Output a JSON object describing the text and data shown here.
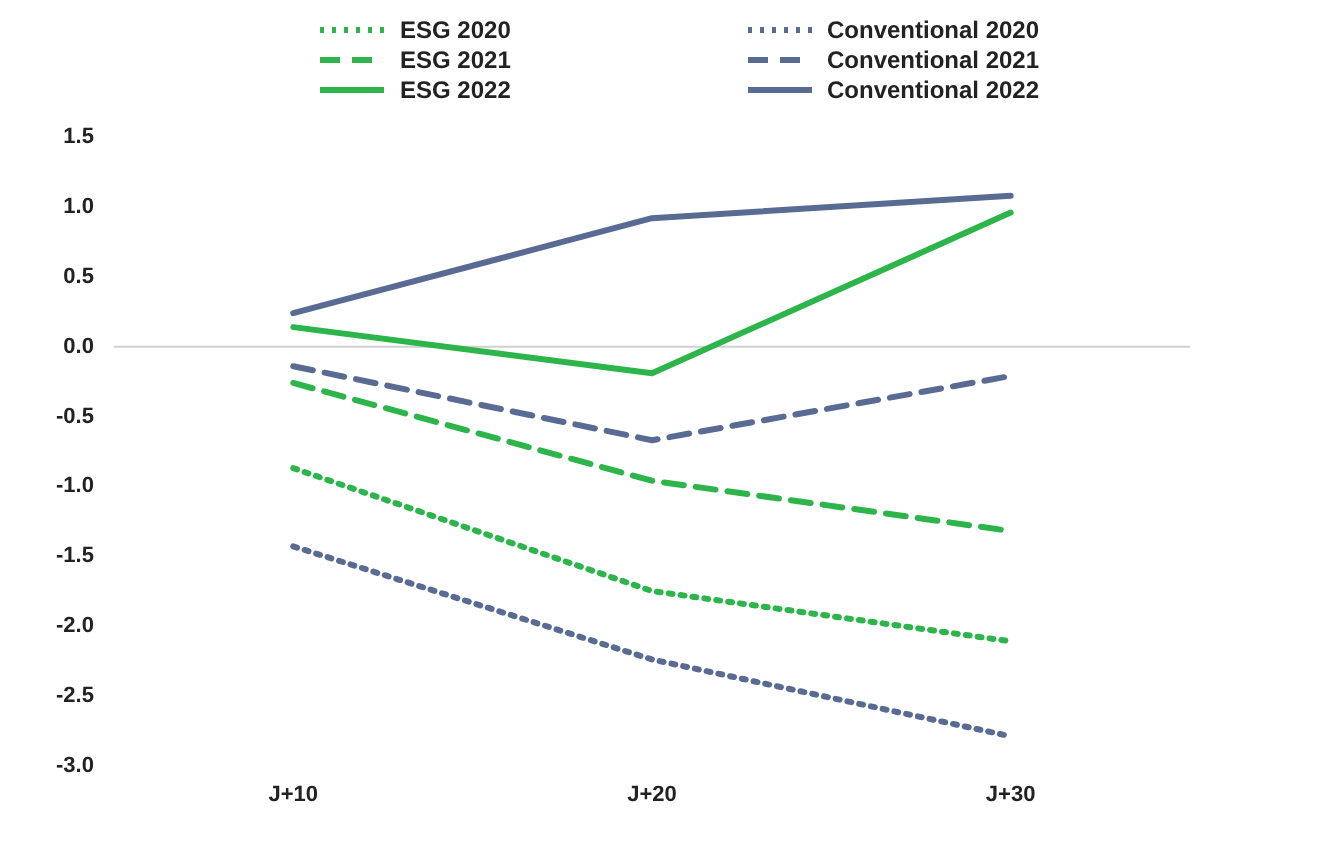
{
  "chart_data": {
    "type": "line",
    "categories": [
      "J+10",
      "J+20",
      "J+30"
    ],
    "ylim": [
      -3.0,
      1.5
    ],
    "yticks": [
      {
        "value": 1.5,
        "label": "1.5"
      },
      {
        "value": 1,
        "label": "1.0"
      },
      {
        "value": 0.5,
        "label": "0.5"
      },
      {
        "value": 0,
        "label": "0.0"
      },
      {
        "value": -0.5,
        "label": "-0.5"
      },
      {
        "value": -1,
        "label": "-1.0"
      },
      {
        "value": -1.5,
        "label": "-1.5"
      },
      {
        "value": -2,
        "label": "-2.0"
      },
      {
        "value": -2.5,
        "label": "-2.5"
      },
      {
        "value": -3,
        "label": "-3.0"
      }
    ],
    "grid": false,
    "legend": "top",
    "marker": "none",
    "ref_lines": [
      {
        "axis": "y",
        "value": 0,
        "color": "#d0d0d0"
      }
    ],
    "series": [
      {
        "name": "ESG 2020",
        "color": "#2db54b",
        "line_style": "dotted",
        "values": [
          -0.87,
          -1.75,
          -2.11
        ]
      },
      {
        "name": "Conventional 2020",
        "color": "#5a6b93",
        "line_style": "dotted",
        "values": [
          -1.43,
          -2.24,
          -2.79
        ]
      },
      {
        "name": "ESG 2021",
        "color": "#2db54b",
        "line_style": "dashed",
        "values": [
          -0.26,
          -0.96,
          -1.32
        ]
      },
      {
        "name": "Conventional 2021",
        "color": "#5a6b93",
        "line_style": "dashed",
        "values": [
          -0.14,
          -0.67,
          -0.21
        ]
      },
      {
        "name": "ESG 2022",
        "color": "#2db54b",
        "line_style": "solid",
        "values": [
          0.14,
          -0.19,
          0.96
        ]
      },
      {
        "name": "Conventional 2022",
        "color": "#5a6b93",
        "line_style": "solid",
        "values": [
          0.24,
          0.92,
          1.08
        ]
      }
    ]
  }
}
